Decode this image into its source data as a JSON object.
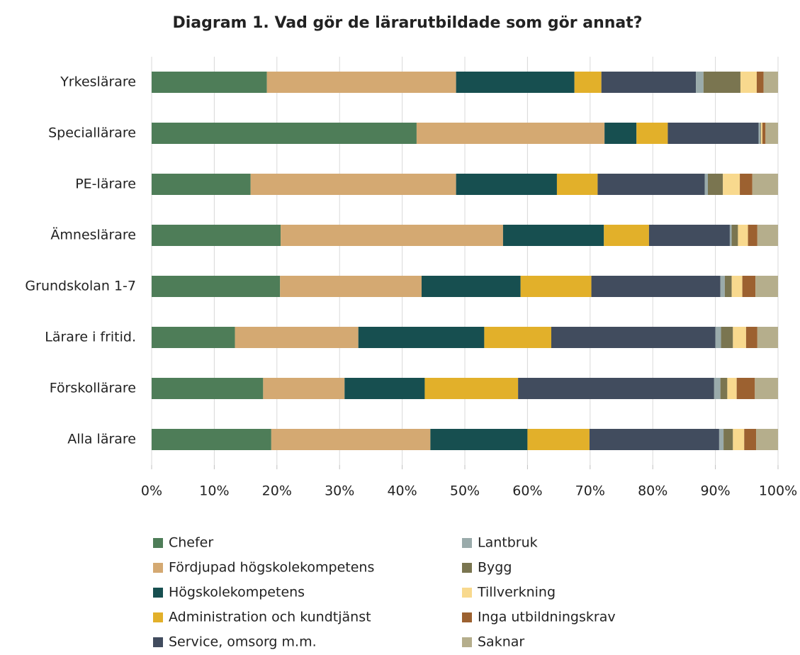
{
  "chart_data": {
    "type": "stacked-bar-horizontal",
    "title": "Diagram 1. Vad gör de lärarutbildade som gör annat?",
    "categories": [
      "Yrkeslärare",
      "Speciallärare",
      "PE-lärare",
      "Ämneslärare",
      "Grundskolan 1-7",
      "Lärare i fritid.",
      "Förskollärare",
      "Alla lärare"
    ],
    "series": [
      {
        "name": "Chefer",
        "color": "#4e7d58",
        "values": [
          18.4,
          42.3,
          15.8,
          20.6,
          20.5,
          13.3,
          17.8,
          19.1
        ]
      },
      {
        "name": "Fördjupad högskolekompetens",
        "color": "#d4a972",
        "values": [
          30.2,
          30.0,
          32.8,
          35.5,
          22.6,
          19.7,
          13.0,
          25.4
        ]
      },
      {
        "name": "Högskolekompetens",
        "color": "#174f50",
        "values": [
          18.9,
          5.1,
          16.1,
          16.1,
          15.8,
          20.1,
          12.8,
          15.5
        ]
      },
      {
        "name": "Administration och kundtjänst",
        "color": "#e2b02a",
        "values": [
          4.3,
          5.0,
          6.5,
          7.2,
          11.3,
          10.7,
          14.9,
          9.9
        ]
      },
      {
        "name": "Service, omsorg m.m.",
        "color": "#414c5e",
        "values": [
          15.1,
          14.5,
          17.1,
          12.9,
          20.6,
          26.2,
          31.3,
          20.7
        ]
      },
      {
        "name": "Lantbruk",
        "color": "#9aabab",
        "values": [
          1.2,
          0.3,
          0.5,
          0.3,
          0.7,
          0.9,
          1.0,
          0.7
        ]
      },
      {
        "name": "Bygg",
        "color": "#7a7550",
        "values": [
          5.9,
          0.1,
          2.4,
          1.0,
          1.1,
          1.9,
          1.1,
          1.5
        ]
      },
      {
        "name": "Tillverkning",
        "color": "#f8d98e",
        "values": [
          2.6,
          0.2,
          2.7,
          1.6,
          1.7,
          2.1,
          1.5,
          1.8
        ]
      },
      {
        "name": "Inga utbildningskrav",
        "color": "#9c6130",
        "values": [
          1.1,
          0.5,
          2.0,
          1.5,
          2.1,
          1.8,
          2.9,
          1.9
        ]
      },
      {
        "name": "Saknar",
        "color": "#b5ae8c",
        "values": [
          2.3,
          2.0,
          4.1,
          3.3,
          3.6,
          3.3,
          3.7,
          3.5
        ]
      }
    ],
    "xlim": [
      0,
      100
    ],
    "xticks": [
      {
        "value": 0,
        "label": "0%"
      },
      {
        "value": 10,
        "label": "10%"
      },
      {
        "value": 20,
        "label": "20%"
      },
      {
        "value": 30,
        "label": "30%"
      },
      {
        "value": 40,
        "label": "40%"
      },
      {
        "value": 50,
        "label": "50%"
      },
      {
        "value": 60,
        "label": "60%"
      },
      {
        "value": 70,
        "label": "70%"
      },
      {
        "value": 80,
        "label": "80%"
      },
      {
        "value": 90,
        "label": "90%"
      },
      {
        "value": 100,
        "label": "100%"
      }
    ],
    "grid": true
  }
}
